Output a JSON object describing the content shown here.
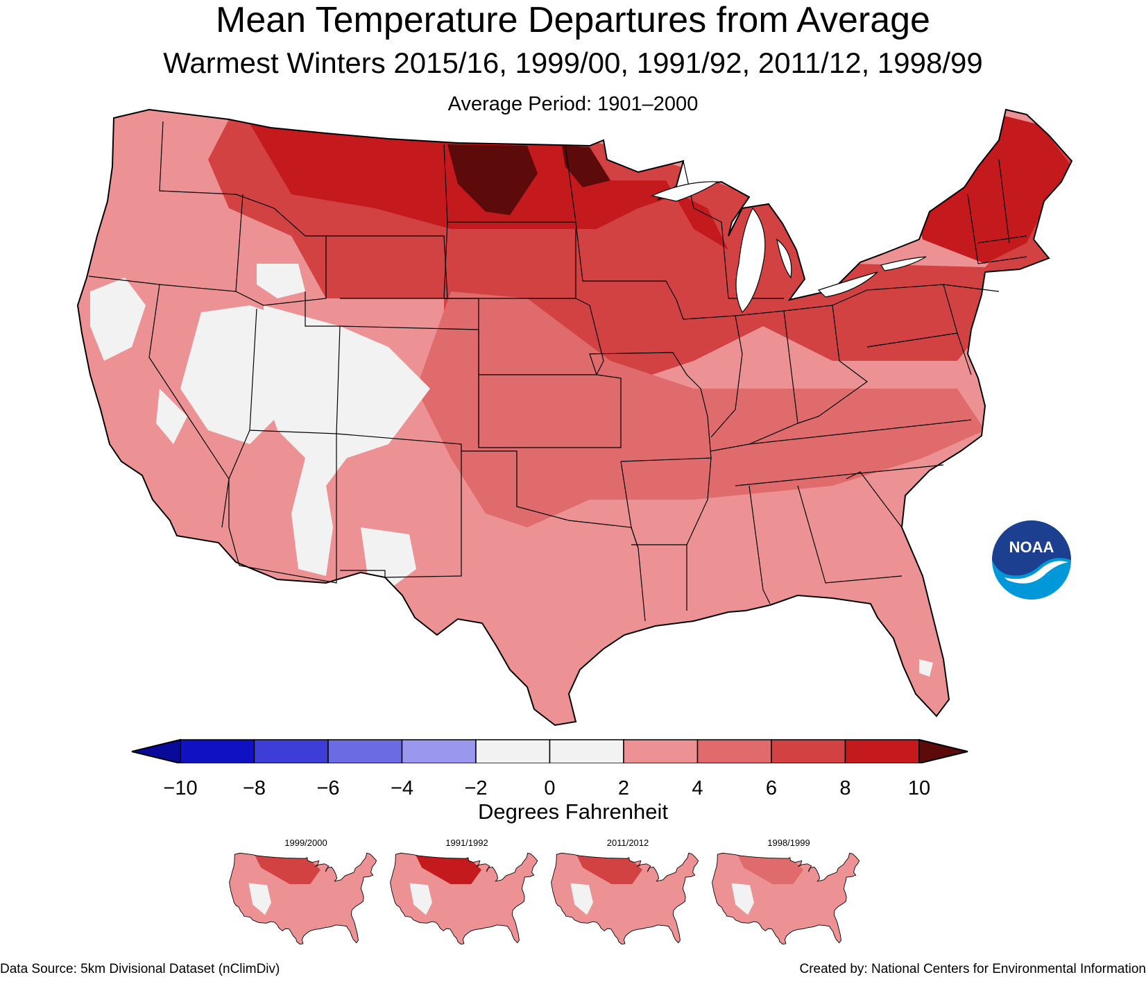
{
  "header": {
    "title": "Mean Temperature Departures from Average",
    "subtitle": "Warmest Winters 2015/16, 1999/00, 1991/92, 2011/12, 1998/99",
    "period": "Average Period: 1901–2000"
  },
  "logo": {
    "text": "NOAA"
  },
  "legend": {
    "title": "Degrees Fahrenheit",
    "ticks": [
      "−10",
      "−8",
      "−6",
      "−4",
      "−2",
      "0",
      "2",
      "4",
      "6",
      "8",
      "10"
    ],
    "bins": [
      {
        "from": -10,
        "to": -8,
        "color": "#1111c4"
      },
      {
        "from": -8,
        "to": -6,
        "color": "#3d3dd8"
      },
      {
        "from": -6,
        "to": -4,
        "color": "#6b6be2"
      },
      {
        "from": -4,
        "to": -2,
        "color": "#9a98ee"
      },
      {
        "from": -2,
        "to": 0,
        "color": "#f2f2f2"
      },
      {
        "from": 0,
        "to": 2,
        "color": "#f2f2f2"
      },
      {
        "from": 2,
        "to": 4,
        "color": "#ec9294"
      },
      {
        "from": 4,
        "to": 6,
        "color": "#e06b6c"
      },
      {
        "from": 6,
        "to": 8,
        "color": "#d24243"
      },
      {
        "from": 8,
        "to": 10,
        "color": "#c51a1d"
      }
    ],
    "under_color": "#0a0a9a",
    "over_color": "#5c0a0a"
  },
  "insets": [
    {
      "label": "1999/2000"
    },
    {
      "label": "1991/1992"
    },
    {
      "label": "2011/2012"
    },
    {
      "label": "1998/1999"
    }
  ],
  "footer": {
    "source": "Data Source: 5km Divisional Dataset (nClimDiv)",
    "credit": "Created by: National Centers for Environmental Information"
  }
}
